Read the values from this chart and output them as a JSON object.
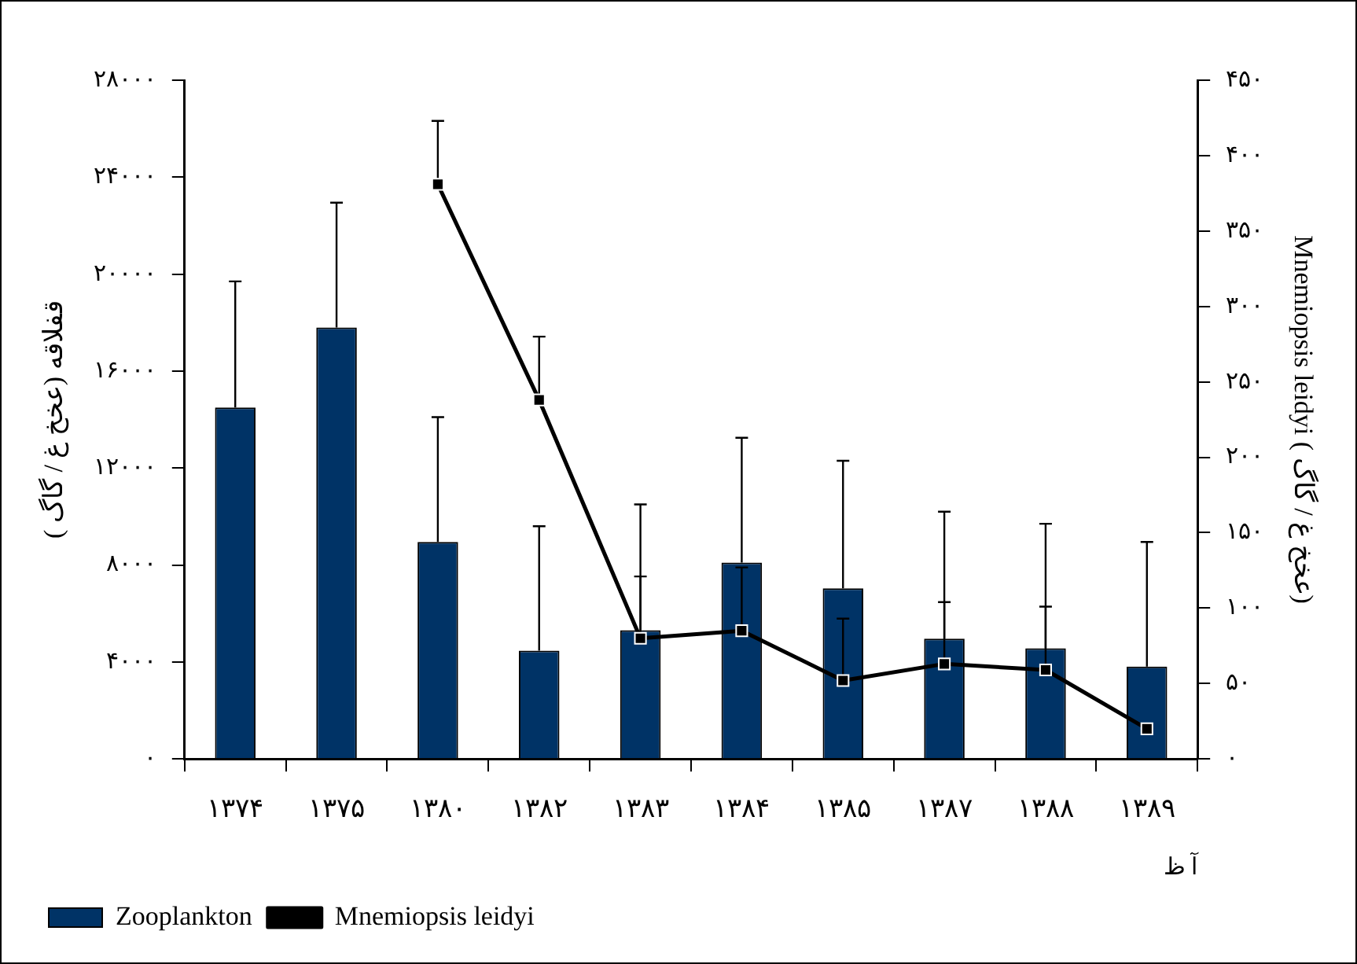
{
  "chart_data": {
    "type": "bar",
    "xlabel": "آ ظ",
    "ylabel": "( عخخ غ / گاگ) قفلاقه",
    "y2label": "Mnemiopsis leidyi ( عخخ غ / گاگ)",
    "categories": [
      "۱۳۷۴",
      "۱۳۷۵",
      "۱۳۸۰",
      "۱۳۸۲",
      "۱۳۸۳",
      "۱۳۸۴",
      "۱۳۸۵",
      "۱۳۸۷",
      "۱۳۸۸",
      "۱۳۸۹"
    ],
    "series": [
      {
        "name": "Zooplankton",
        "color": "#003366",
        "values": [
          14500,
          17800,
          8950,
          4470,
          5310,
          8100,
          7040,
          4960,
          4560,
          3810
        ],
        "errors": [
          [
            14500,
            19700
          ],
          [
            17800,
            22950
          ],
          [
            8950,
            14100
          ],
          [
            4470,
            9600
          ],
          [
            5310,
            10500
          ],
          [
            8100,
            13250
          ],
          [
            7040,
            12300
          ],
          [
            4960,
            10200
          ],
          [
            4560,
            9700
          ],
          [
            3810,
            8950
          ]
        ]
      },
      {
        "name": "Mnemiopsis leidyi",
        "type": "line",
        "axis": "y2",
        "color": "#000000",
        "marker": "square",
        "values": [
          null,
          null,
          381,
          238,
          80,
          85,
          52,
          63,
          59,
          20
        ],
        "errors": [
          null,
          null,
          [
            381,
            423
          ],
          [
            238,
            280
          ],
          [
            80,
            121
          ],
          [
            85,
            127
          ],
          [
            52,
            93
          ],
          [
            63,
            104
          ],
          [
            59,
            101
          ],
          null
        ]
      }
    ],
    "ylim": [
      0,
      28000
    ],
    "yticks": [
      {
        "value": 0,
        "label": "۰"
      },
      {
        "value": 4000,
        "label": "۴۰۰۰"
      },
      {
        "value": 8000,
        "label": "۸۰۰۰"
      },
      {
        "value": 12000,
        "label": "۱۲۰۰۰"
      },
      {
        "value": 16000,
        "label": "۱۶۰۰۰"
      },
      {
        "value": 20000,
        "label": "۲۰۰۰۰"
      },
      {
        "value": 24000,
        "label": "۲۴۰۰۰"
      },
      {
        "value": 28000,
        "label": "۲۸۰۰۰"
      }
    ],
    "y2lim": [
      0,
      450
    ],
    "y2ticks": [
      {
        "value": 0,
        "label": "۰"
      },
      {
        "value": 50,
        "label": "۵۰"
      },
      {
        "value": 100,
        "label": "۱۰۰"
      },
      {
        "value": 150,
        "label": "۱۵۰"
      },
      {
        "value": 200,
        "label": "۲۰۰"
      },
      {
        "value": 250,
        "label": "۲۵۰"
      },
      {
        "value": 300,
        "label": "۳۰۰"
      },
      {
        "value": 350,
        "label": "۳۵۰"
      },
      {
        "value": 400,
        "label": "۴۰۰"
      },
      {
        "value": 450,
        "label": "۴۵۰"
      }
    ],
    "grid": false,
    "legend": "bottom"
  }
}
